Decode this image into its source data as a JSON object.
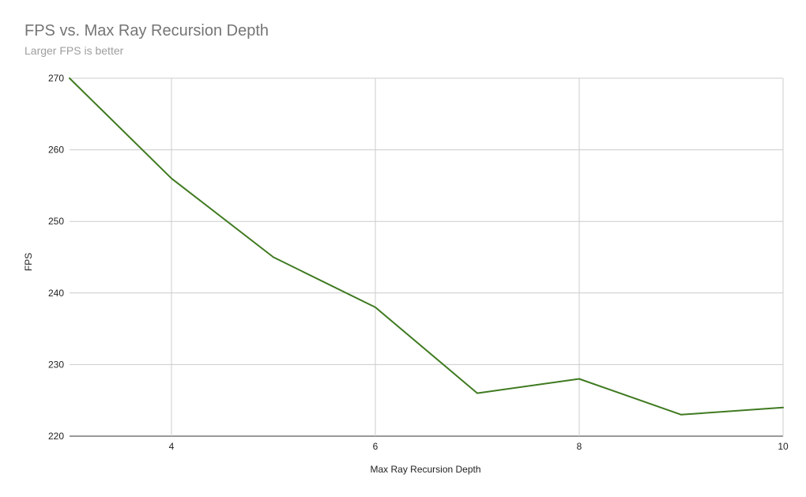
{
  "chart_data": {
    "type": "line",
    "title": "FPS vs. Max Ray Recursion Depth",
    "subtitle": "Larger FPS is better",
    "xlabel": "Max Ray Recursion Depth",
    "ylabel": "FPS",
    "xlim": [
      3,
      10
    ],
    "ylim": [
      220,
      270
    ],
    "x_ticks": [
      4,
      6,
      8,
      10
    ],
    "y_ticks": [
      220,
      230,
      240,
      250,
      260,
      270
    ],
    "grid": true,
    "legend": "none",
    "series": [
      {
        "color": "#3f7a20",
        "x": [
          3,
          4,
          5,
          6,
          7,
          8,
          9,
          10
        ],
        "values": [
          270,
          256,
          245,
          238,
          226,
          228,
          223,
          224
        ]
      }
    ]
  }
}
